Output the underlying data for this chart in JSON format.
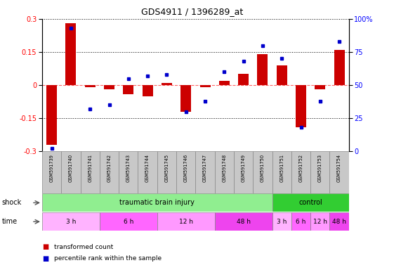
{
  "title": "GDS4911 / 1396289_at",
  "samples": [
    "GSM591739",
    "GSM591740",
    "GSM591741",
    "GSM591742",
    "GSM591743",
    "GSM591744",
    "GSM591745",
    "GSM591746",
    "GSM591747",
    "GSM591748",
    "GSM591749",
    "GSM591750",
    "GSM591751",
    "GSM591752",
    "GSM591753",
    "GSM591754"
  ],
  "red_values": [
    -0.27,
    0.28,
    -0.01,
    -0.02,
    -0.04,
    -0.05,
    0.01,
    -0.12,
    -0.01,
    0.02,
    0.05,
    0.14,
    0.09,
    -0.19,
    -0.02,
    0.16
  ],
  "blue_pct": [
    2,
    93,
    32,
    35,
    55,
    57,
    58,
    30,
    38,
    60,
    68,
    80,
    70,
    18,
    38,
    83
  ],
  "ylim_left": [
    -0.3,
    0.3
  ],
  "ylim_right": [
    0,
    100
  ],
  "yticks_left": [
    -0.3,
    -0.15,
    0.0,
    0.15,
    0.3
  ],
  "yticks_right": [
    0,
    25,
    50,
    75,
    100
  ],
  "shock_groups": [
    {
      "label": "traumatic brain injury",
      "start": 0,
      "end": 12,
      "color": "#90EE90"
    },
    {
      "label": "control",
      "start": 12,
      "end": 16,
      "color": "#32CD32"
    }
  ],
  "time_groups": [
    {
      "label": "3 h",
      "start": 0,
      "end": 3,
      "color": "#FFB3FF"
    },
    {
      "label": "6 h",
      "start": 3,
      "end": 6,
      "color": "#FF66FF"
    },
    {
      "label": "12 h",
      "start": 6,
      "end": 9,
      "color": "#FF99FF"
    },
    {
      "label": "48 h",
      "start": 9,
      "end": 12,
      "color": "#EE44EE"
    },
    {
      "label": "3 h",
      "start": 12,
      "end": 13,
      "color": "#FFB3FF"
    },
    {
      "label": "6 h",
      "start": 13,
      "end": 14,
      "color": "#FF66FF"
    },
    {
      "label": "12 h",
      "start": 14,
      "end": 15,
      "color": "#FF99FF"
    },
    {
      "label": "48 h",
      "start": 15,
      "end": 16,
      "color": "#EE44EE"
    }
  ],
  "bar_color": "#CC0000",
  "dot_color": "#0000CC",
  "bg_color": "#FFFFFF",
  "hline_color": "#FF6666",
  "sample_box_color": "#C8C8C8"
}
